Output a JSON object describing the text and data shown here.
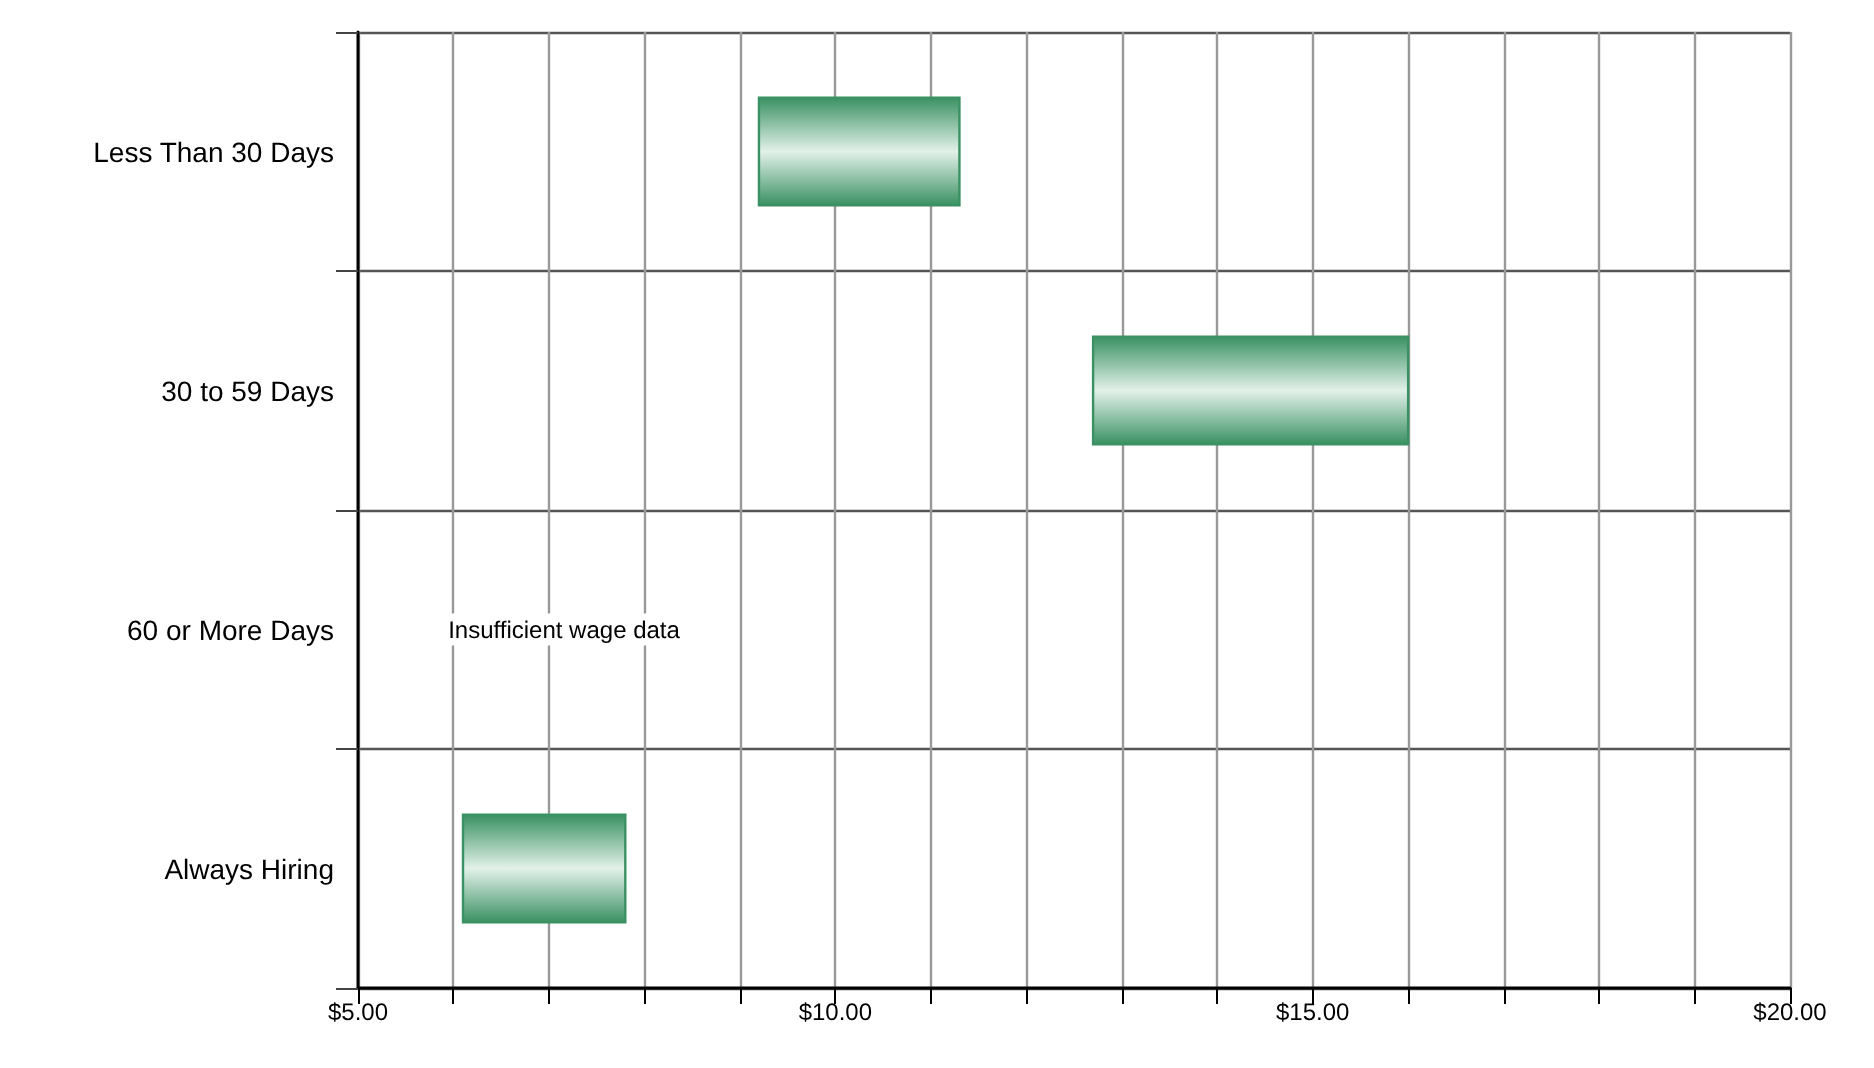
{
  "chart_data": {
    "type": "bar",
    "orientation": "horizontal",
    "categories": [
      "Less Than 30 Days",
      "30 to 59 Days",
      "60 or More Days",
      "Always Hiring"
    ],
    "base": [
      9.2,
      12.7,
      null,
      6.1
    ],
    "values": [
      2.1,
      3.3,
      null,
      1.7
    ],
    "color": "#3a9163",
    "xlim": [
      5,
      20
    ],
    "xticks": [
      {
        "value": 5,
        "label": "$5.00"
      },
      {
        "value": 6,
        "label": null
      },
      {
        "value": 7,
        "label": null
      },
      {
        "value": 8,
        "label": null
      },
      {
        "value": 9,
        "label": null
      },
      {
        "value": 10,
        "label": "$10.00"
      },
      {
        "value": 11,
        "label": null
      },
      {
        "value": 12,
        "label": null
      },
      {
        "value": 13,
        "label": null
      },
      {
        "value": 14,
        "label": null
      },
      {
        "value": 15,
        "label": "$15.00"
      },
      {
        "value": 16,
        "label": null
      },
      {
        "value": 17,
        "label": null
      },
      {
        "value": 18,
        "label": null
      },
      {
        "value": 19,
        "label": null
      },
      {
        "value": 20,
        "label": "$20.00"
      }
    ],
    "grid": true,
    "annotations": [
      "Insufficient wage data"
    ]
  }
}
